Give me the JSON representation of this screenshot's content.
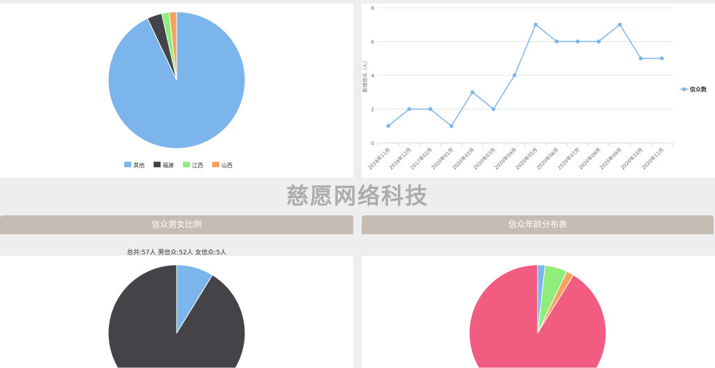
{
  "watermark": "慈愿网络科技",
  "chart_data": [
    {
      "type": "pie",
      "categories": [
        "其他",
        "福建",
        "江西",
        "山西"
      ],
      "values": [
        53,
        2,
        1,
        1
      ],
      "colors": [
        "#7cb5ec",
        "#434348",
        "#90ed7d",
        "#f7a35c"
      ],
      "legend": "bottom"
    },
    {
      "type": "line",
      "categories": [
        "2016年11月",
        "2016年12月",
        "2017年02月",
        "2020年01月",
        "2020年02月",
        "2020年03月",
        "2020年04月",
        "2020年05月",
        "2020年06月",
        "2020年07月",
        "2020年08月",
        "2020年09月",
        "2020年10月",
        "2020年11月"
      ],
      "series": [
        {
          "name": "信众数",
          "values": [
            1,
            2,
            2,
            1,
            3,
            2,
            4,
            7,
            6,
            6,
            6,
            7,
            5,
            5
          ],
          "color": "#7cb5ec"
        }
      ],
      "ylabel": "新增信众（人）",
      "ylim": [
        0,
        8
      ],
      "yticks": [
        0,
        2,
        4,
        6,
        8
      ],
      "grid": true,
      "legend": "right"
    },
    {
      "type": "pie",
      "title": "信众男女比例",
      "subtitle": "总共:57人  男信众:52人  女信众:5人",
      "values": [
        5,
        52
      ],
      "colors": [
        "#7cb5ec",
        "#434348"
      ]
    },
    {
      "type": "pie",
      "title": "信众年龄分布表",
      "values": [
        1,
        3,
        1,
        52
      ],
      "colors": [
        "#7cb5ec",
        "#90ed7d",
        "#f7a35c",
        "#f15c80"
      ]
    }
  ]
}
